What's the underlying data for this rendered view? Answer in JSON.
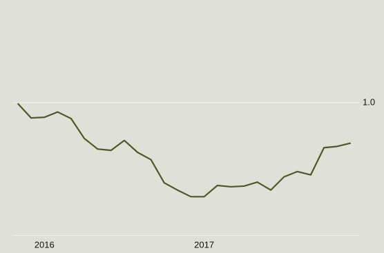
{
  "chart_data": {
    "type": "line",
    "x": [
      2015.833,
      2015.917,
      2016.0,
      2016.083,
      2016.167,
      2016.25,
      2016.333,
      2016.417,
      2016.5,
      2016.583,
      2016.667,
      2016.75,
      2016.833,
      2016.917,
      2017.0,
      2017.083,
      2017.167,
      2017.25,
      2017.333,
      2017.417,
      2017.5,
      2017.583,
      2017.667,
      2017.75,
      2017.833,
      2017.917
    ],
    "series": [
      {
        "color": "#4b5a22",
        "values": [
          0.999,
          0.977,
          0.978,
          0.986,
          0.976,
          0.946,
          0.93,
          0.928,
          0.943,
          0.925,
          0.914,
          0.879,
          0.868,
          0.858,
          0.858,
          0.875,
          0.873,
          0.874,
          0.88,
          0.868,
          0.888,
          0.896,
          0.891,
          0.932,
          0.934,
          0.939
        ]
      }
    ],
    "xlim": [
      2015.8,
      2017.97
    ],
    "xticks": [
      2016,
      2017
    ],
    "ylim": [
      0.8,
      1.15
    ],
    "yticks": [
      {
        "value": 1,
        "label": "1.0"
      }
    ],
    "grid": true
  }
}
